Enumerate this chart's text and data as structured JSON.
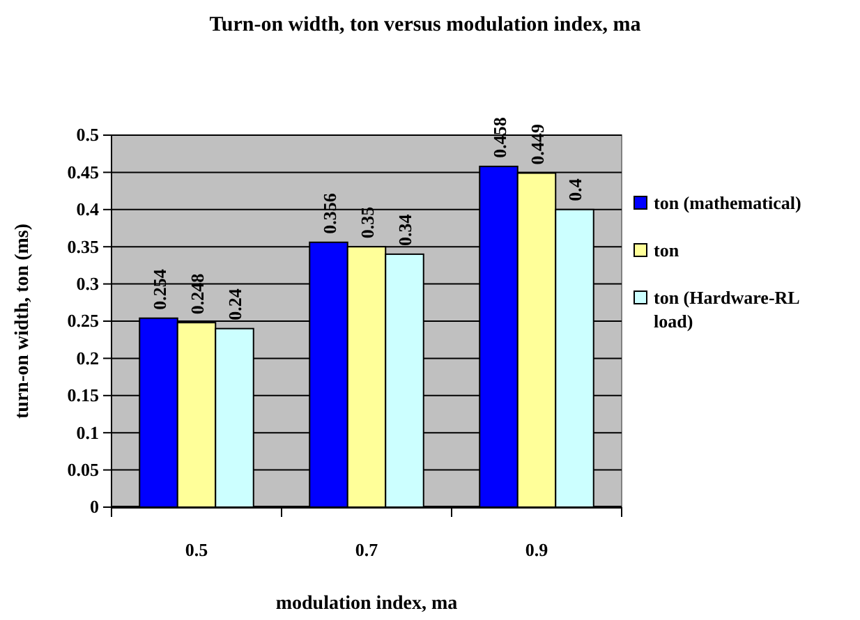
{
  "chart_data": {
    "type": "bar",
    "title": "Turn-on width, ton versus modulation index, ma",
    "xlabel": "modulation index, ma",
    "ylabel": "turn-on width, ton (ms)",
    "categories": [
      "0.5",
      "0.7",
      "0.9"
    ],
    "series": [
      {
        "name": "ton (mathematical)",
        "color": "#0000ff",
        "values": [
          0.254,
          0.356,
          0.458
        ]
      },
      {
        "name": "ton",
        "color": "#ffff99",
        "values": [
          0.248,
          0.35,
          0.449
        ]
      },
      {
        "name": "ton (Hardware-RL load)",
        "color": "#ccffff",
        "values": [
          0.24,
          0.34,
          0.4
        ]
      }
    ],
    "ylim": [
      0,
      0.5
    ],
    "yticks": [
      0,
      0.05,
      0.1,
      0.15,
      0.2,
      0.25,
      0.3,
      0.35,
      0.4,
      0.45,
      0.5
    ],
    "grid": "y",
    "legend": "right",
    "data_labels": true
  }
}
